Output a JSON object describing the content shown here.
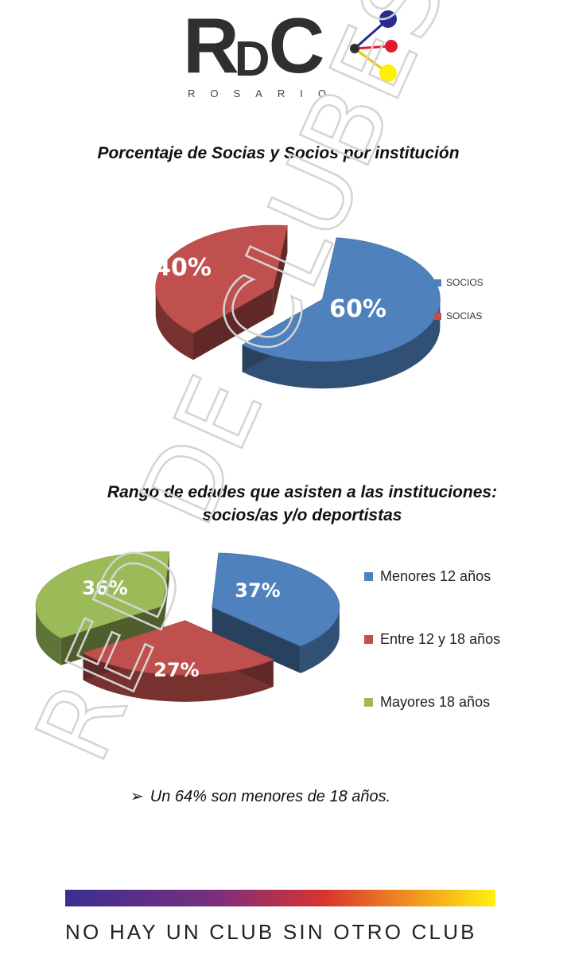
{
  "logo": {
    "letters": [
      "R",
      "D",
      "C"
    ],
    "subtitle": "ROSARIO",
    "dot_colors": [
      "#2b2a8f",
      "#e21b2a",
      "#fff000"
    ]
  },
  "watermark": {
    "text": "RED DE CLUBES"
  },
  "chart_data": [
    {
      "type": "pie",
      "title": "Porcentaje de Socias y Socios por institución",
      "labels": [
        "SOCIOS",
        "SOCIAS"
      ],
      "values": [
        60,
        40
      ],
      "data_labels": [
        "60%",
        "40%"
      ],
      "colors": [
        "#4f81bd",
        "#c0504d"
      ],
      "exploded": true,
      "three_d": true,
      "legend": "right"
    },
    {
      "type": "pie",
      "title": "Rango de edades que asisten a las instituciones: socios/as y/o deportistas",
      "labels": [
        "Menores 12 años",
        "Entre 12 y 18 años",
        "Mayores 18 años"
      ],
      "values": [
        37,
        27,
        36
      ],
      "data_labels": [
        "37%",
        "27%",
        "36%"
      ],
      "colors": [
        "#4f81bd",
        "#c0504d",
        "#9bbb59"
      ],
      "exploded": true,
      "three_d": true,
      "legend": "right"
    }
  ],
  "note": "Un 64% son menores de 18 años.",
  "footer": {
    "slogan": "NO HAY UN CLUB SIN OTRO CLUB"
  }
}
